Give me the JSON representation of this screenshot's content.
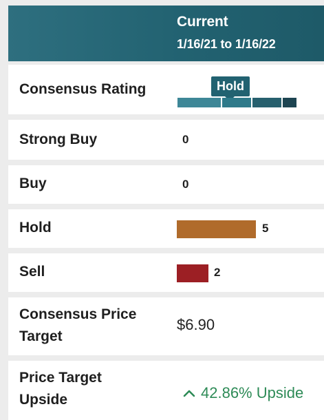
{
  "header": {
    "title": "Current",
    "date_range": "1/16/21 to 1/16/22"
  },
  "rows": {
    "consensus_rating": {
      "label": "Consensus Rating",
      "badge": "Hold",
      "scale_level": "Hold"
    },
    "strong_buy": {
      "label": "Strong Buy",
      "count": "0"
    },
    "buy": {
      "label": "Buy",
      "count": "0"
    },
    "hold": {
      "label": "Hold",
      "count": "5",
      "bar_color": "#b06b2b"
    },
    "sell": {
      "label": "Sell",
      "count": "2",
      "bar_color": "#9c1f24"
    },
    "price_target": {
      "label_line1": "Consensus Price",
      "label_line2": "Target",
      "value": "$6.90"
    },
    "upside": {
      "label_line1": "Price Target",
      "label_line2": "Upside",
      "value": "42.86% Upside",
      "icon": "chevron-up-icon",
      "color": "#2e8b57"
    }
  },
  "colors": {
    "header": "#226271",
    "hold": "#b06b2b",
    "sell": "#9c1f24",
    "upside": "#2e8b57"
  }
}
